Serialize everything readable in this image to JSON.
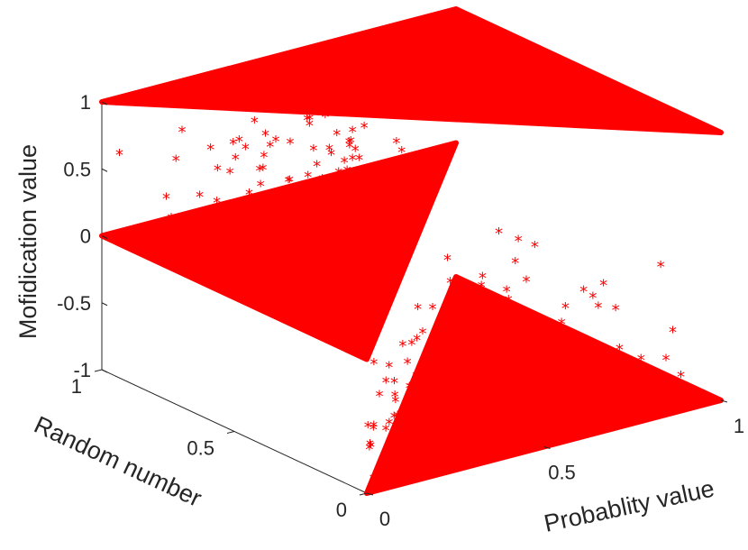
{
  "chart_data": {
    "type": "scatter",
    "projection": "3d",
    "title": "",
    "xlabel": "Probablity value",
    "ylabel": "Random number",
    "zlabel": "Mofidication value",
    "xlim": [
      0,
      1
    ],
    "ylim": [
      0,
      1
    ],
    "zlim": [
      -1,
      1
    ],
    "xticks": [
      "0",
      "0.5",
      "1"
    ],
    "yticks": [
      "0",
      "0.5",
      "1"
    ],
    "zticks": [
      "-1",
      "-0.5",
      "0",
      "0.5",
      "1"
    ],
    "grid": false,
    "marker": "asterisk",
    "marker_color": "#ff0000",
    "series": [
      {
        "description": "dense red asterisk point cloud forming three triangular sheets",
        "sheets": [
          {
            "z": 1,
            "region": "random number > probability value"
          },
          {
            "z": 0,
            "region": "random number < probability value"
          },
          {
            "z": -1,
            "region": "random number < probability value (lower)"
          }
        ]
      }
    ]
  }
}
